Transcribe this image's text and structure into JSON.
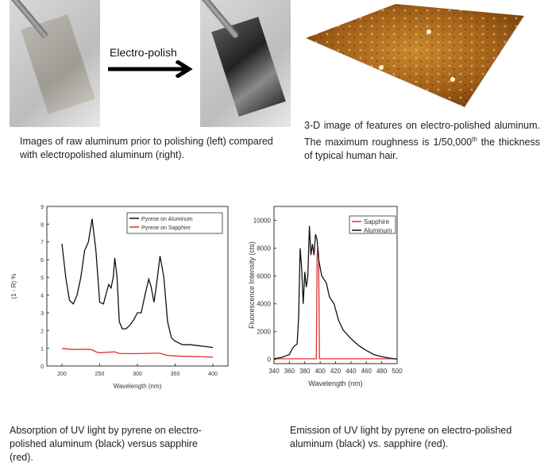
{
  "top_left": {
    "arrow_label": "Electro-polish",
    "caption": "Images of raw aluminum prior to polishing (left) compared with electropolished aluminum (right)."
  },
  "top_right": {
    "caption_pre": "3-D image of features on electro-polished aluminum. The maximum roughness is 1/50,000",
    "caption_sup": "th",
    "caption_post": " the thickness of typical human hair."
  },
  "bottom_left": {
    "caption": "Absorption of UV light by pyrene on electro-polished aluminum (black) versus sapphire (red)."
  },
  "bottom_right": {
    "caption": "Emission of UV light by pyrene on electro-polished aluminum (black) vs. sapphire (red)."
  },
  "chart_data": [
    {
      "type": "line",
      "title": "",
      "xlabel": "Wavelength (nm)",
      "ylabel": "(1 - R) %",
      "xlim": [
        180,
        420
      ],
      "ylim": [
        0,
        9
      ],
      "xticks": [
        200,
        250,
        300,
        350,
        400
      ],
      "yticks": [
        0,
        1,
        2,
        3,
        4,
        5,
        6,
        7,
        8,
        9
      ],
      "legend": "top-right",
      "series": [
        {
          "name": "Pyrene on Aluminum",
          "color": "#111111",
          "x": [
            200,
            205,
            210,
            215,
            220,
            225,
            230,
            235,
            240,
            245,
            250,
            255,
            260,
            262,
            265,
            268,
            270,
            273,
            276,
            280,
            285,
            290,
            295,
            300,
            305,
            310,
            315,
            318,
            322,
            325,
            330,
            335,
            340,
            345,
            350,
            360,
            370,
            380,
            390,
            400
          ],
          "y": [
            6.9,
            5.0,
            3.7,
            3.5,
            4.0,
            5.0,
            6.5,
            7.0,
            8.3,
            6.5,
            3.6,
            3.5,
            4.3,
            4.6,
            4.4,
            5.0,
            6.1,
            5.0,
            2.5,
            2.1,
            2.1,
            2.3,
            2.6,
            3.0,
            3.0,
            4.0,
            4.9,
            4.5,
            3.6,
            4.5,
            6.2,
            5.0,
            2.5,
            1.6,
            1.4,
            1.2,
            1.2,
            1.15,
            1.1,
            1.05
          ]
        },
        {
          "name": "Pyrene on Sapphire",
          "color": "#e03030",
          "x": [
            200,
            210,
            220,
            230,
            240,
            245,
            250,
            260,
            270,
            275,
            280,
            300,
            320,
            330,
            335,
            340,
            350,
            360,
            380,
            400
          ],
          "y": [
            1.0,
            0.95,
            0.93,
            0.95,
            0.92,
            0.8,
            0.75,
            0.78,
            0.8,
            0.72,
            0.7,
            0.7,
            0.72,
            0.72,
            0.65,
            0.6,
            0.57,
            0.55,
            0.53,
            0.5
          ]
        }
      ]
    },
    {
      "type": "line",
      "title": "",
      "xlabel": "Wavelength (nm)",
      "ylabel": "Fluorescence Intensity (cts)",
      "xlim": [
        340,
        500
      ],
      "ylim": [
        -300,
        11000
      ],
      "xticks": [
        340,
        360,
        380,
        400,
        420,
        440,
        460,
        480,
        500
      ],
      "yticks": [
        0,
        2000,
        4000,
        6000,
        8000,
        10000
      ],
      "legend": "top-right",
      "series": [
        {
          "name": "Sapphire",
          "color": "#e03030",
          "x": [
            340,
            395,
            396,
            397,
            398,
            399,
            500
          ],
          "y": [
            50,
            50,
            7500,
            8000,
            7500,
            50,
            50
          ]
        },
        {
          "name": "Aluminum",
          "color": "#111111",
          "x": [
            340,
            350,
            360,
            364,
            367,
            370,
            372,
            374,
            376,
            378,
            380,
            382,
            384,
            386,
            388,
            390,
            392,
            394,
            396,
            398,
            402,
            408,
            412,
            418,
            424,
            430,
            440,
            450,
            460,
            470,
            480,
            490,
            500
          ],
          "y": [
            50,
            150,
            350,
            800,
            1000,
            1100,
            3000,
            8000,
            6500,
            4000,
            6300,
            5200,
            6000,
            9600,
            7500,
            8300,
            7500,
            9000,
            8600,
            7200,
            6000,
            5500,
            4500,
            4000,
            2800,
            2100,
            1500,
            1000,
            650,
            350,
            200,
            100,
            20
          ]
        }
      ]
    }
  ]
}
